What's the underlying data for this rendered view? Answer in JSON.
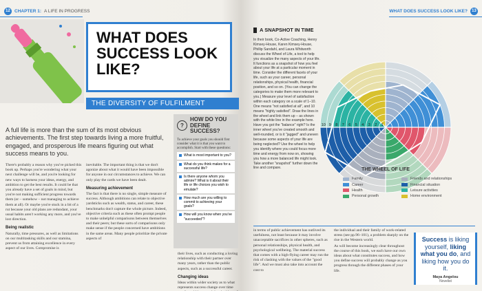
{
  "header": {
    "left_page": "12",
    "chapter_label": "CHAPTER 1:",
    "chapter_title": "A LIFE IN PROGRESS",
    "right_title": "WHAT DOES SUCCESS LOOK LIKE?",
    "right_page": "13"
  },
  "title": "WHAT DOES SUCCESS LOOK LIKE?",
  "subtitle": "THE DIVERSITY OF FULFILMENT",
  "intro": "A full life is more than the sum of its most obvious achievements. The first step towards living a more fruitful, engaged, and prosperous life means figuring out what success means to you.",
  "columns": [
    [
      {
        "p": "There's probably a reason why you've picked this book up. Perhaps you're wondering what your next challenge will be, and you're looking for new ways to harness your ideas, energy, and ambition to get the best results. It could be that you already have a set of goals in mind, but you're not making sufficient progress towards them (or – somehow – not managing to achieve them at all). Or maybe you're stuck in a bit of a rut because your old plans are redundant, your usual habits aren't working any more, and you've lost direction."
      },
      {
        "h": "Being realistic"
      },
      {
        "p": "Naturally, time pressures, as well as limitations on our multitasking skills and our stamina, prevent us from attaining excellence in every aspect of our lives. Compromise is"
      }
    ],
    [
      {
        "p": "inevitable. The important thing is that we don't agonize about what it would have been impossible for anyone in our circumstances to achieve. We can only play the cards we have been dealt."
      },
      {
        "h": "Measuring achievement"
      },
      {
        "p": "The fact is that there is no single, simple measure of success. Although ambitions can relate to objective yardsticks such as wealth, status, and career, these benchmarks don't capture the whole picture. Indeed, objective criteria such as these often prompt people to make unhelpful comparisons between themselves and their peers; but these sorts of comparisons only make sense if the people concerned have ambitions in the same areas. Many people prioritize the private aspects of"
      }
    ],
    [
      {
        "p": "their lives, such as conducting a loving relationship with their partner over many years, rather than the public aspects, such as a successful career."
      },
      {
        "h": "Changing ideas"
      },
      {
        "p": "Ideas within wider society as to what represents success change over time too. It could be argued that the ideas of measuring success"
      }
    ],
    [
      {
        "p": "in terms of public achievement has outlived its usefulness, not least because it may involve unacceptable sacrifices in other spheres, such as personal relationships, physical health, and psychological wellbeing. The material success that comes with a high-flying career may run the risk of clashing with the values of the \"good life\". And we must also take into account the cost to"
      }
    ],
    [
      {
        "p": "the individual and their family of work-related stress (see pp.96–101), a problem sharply on the rise in the Western world."
      },
      {
        "p": "As will become increasingly clear throughout the course of this book, we each have our own ideas about what constitutes success, and how you define success will probably change as you progress through the different phases of your life."
      }
    ]
  ],
  "sidebar": {
    "title": "HOW DO YOU DEFINE SUCCESS?",
    "intro": "To achieve your goals you should first consider what it is that you want to accomplish. Start with these questions:",
    "items": [
      "What is most important to you?",
      "What do you think makes for a successful life?",
      "Is there anyone whom you admire? What is it about their life or life choices you wish to emulate?",
      "How much are you willing to commit to achieving your goals?",
      "How will you know when you've \"succeeded\"?"
    ]
  },
  "snapshot": {
    "title": "A SNAPSHOT IN TIME",
    "text": "In their book, Co-Active Coaching, Henry Kimsey-House, Karen Kimsey-House, Phillip Sandahl, and Laura Whitworth discuss the Wheel of Life, a tool to help you visualize the many aspects of your life. It functions as a snapshot of how you feel about your life at a particular moment in time. Consider the different facets of your life, such as your career, personal relationships, physical health, financial position, and so on. (You can change the categories to make them more relevant to you.) Measure your level of satisfaction within each category on a scale of 1–10. One means \"not satisfied at all\", and 10 means \"highly satisfied\". Draw the lines in the wheel and link them up – as shown with the white line in the example here. Have you got the \"balance\" right? Is the inner wheel you've created smooth and well-rounded, or is it \"jagged\" and uneven because some aspects of your life are being neglected? Use the wheel to help you identify where you could focus more time and energy from now on, showing you how a more balanced life might look. Take another \"snapshot\" further down the line and compare."
  },
  "wheel": {
    "title": "THE WHEEL OF LIFE",
    "scale": [
      10,
      9,
      8,
      7,
      6,
      5,
      4,
      3,
      2,
      1
    ],
    "segments": [
      {
        "name": "Family",
        "color": "#9fb4cf",
        "value": 7
      },
      {
        "name": "Career",
        "color": "#3f8fd6",
        "value": 9
      },
      {
        "name": "Health",
        "color": "#e0566b",
        "value": 6
      },
      {
        "name": "Personal growth",
        "color": "#3aa86b",
        "value": 5
      },
      {
        "name": "Friends and relationships",
        "color": "#a9b0bd",
        "value": 8
      },
      {
        "name": "Financial situation",
        "color": "#1d5ea8",
        "value": 10
      },
      {
        "name": "Leisure activities",
        "color": "#2bb3a3",
        "value": 8
      },
      {
        "name": "Home environment",
        "color": "#d8c12e",
        "value": 6
      }
    ]
  },
  "quote": {
    "parts": [
      {
        "t": "Success",
        "b": true
      },
      {
        "t": " is liking yourself, ",
        "b": false
      },
      {
        "t": "liking what you do",
        "b": true
      },
      {
        "t": ", and liking how you do it.",
        "b": false
      }
    ],
    "author": "Maya Angelou",
    "role": "Novelist"
  }
}
